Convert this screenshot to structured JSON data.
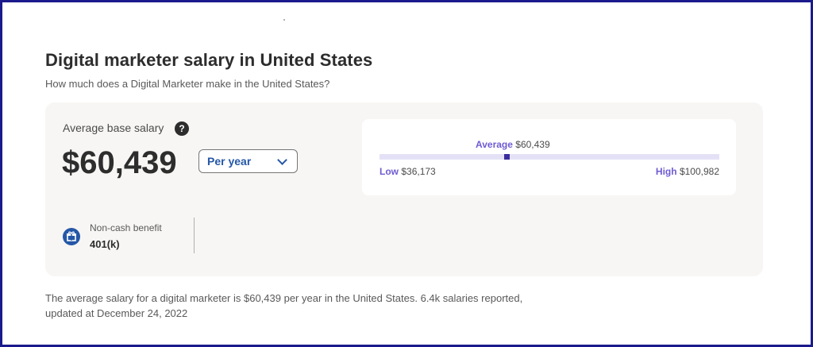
{
  "header": {
    "title": "Digital marketer salary in United States",
    "subtitle": "How much does a Digital Marketer make in the United States?"
  },
  "salary_card": {
    "average_label": "Average base salary",
    "help_icon": "question-icon",
    "help_glyph": "?",
    "amount": "$60,439",
    "period_select": {
      "selected": "Per year"
    }
  },
  "range": {
    "average_label": "Average",
    "average_value": "$60,439",
    "low_label": "Low",
    "low_value": "$36,173",
    "high_label": "High",
    "high_value": "$100,982",
    "low_number": 36173,
    "high_number": 100982,
    "average_number": 60439
  },
  "benefit": {
    "icon": "gift-icon",
    "label": "Non-cash benefit",
    "value": "401(k)"
  },
  "footnote": {
    "line1": "The average salary for a digital marketer is $60,439 per year in the United States.  6.4k salaries reported,",
    "line2": "updated at December 24, 2022"
  },
  "colors": {
    "accent": "#6f5bd3",
    "marker": "#3b2c9e",
    "link_blue": "#2557a7",
    "frame": "#1a1a8c"
  }
}
